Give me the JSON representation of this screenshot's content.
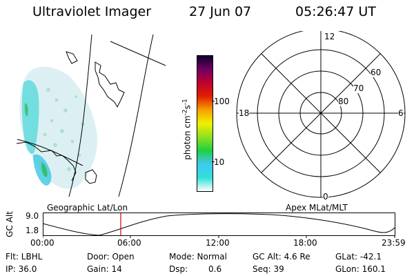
{
  "header": {
    "title": "Ultraviolet Imager",
    "date": "27 Jun 07",
    "time": "05:26:47 UT"
  },
  "colorbar": {
    "unit_label": "photon cm",
    "unit_sup1": "-2",
    "unit_mid": "s",
    "unit_sup2": "-1",
    "tick_100": "100",
    "tick_10": "10"
  },
  "polar": {
    "lat_labels": [
      "60",
      "70",
      "80"
    ],
    "mlt_top": "12",
    "mlt_left": "18",
    "mlt_right": "6",
    "mlt_bottom": "0"
  },
  "timeline": {
    "ylabel": "GC Alt",
    "y_high": "9.0",
    "y_low": "1.8",
    "title_left": "Geographic Lat/Lon",
    "title_right": "Apex MLat/MLT",
    "ticks": [
      "00:00",
      "06:00",
      "12:00",
      "18:00",
      "23:59"
    ]
  },
  "info": {
    "row1": {
      "flt": "Flt: LBHL",
      "door": "Door: Open",
      "mode": "Mode: Normal",
      "gcalt": "GC Alt: 4.6 Re",
      "glat": "GLat: -42.1"
    },
    "row2": {
      "ip": "IP: 36.0",
      "gain": "Gain: 14",
      "dsp_label": "Dsp:",
      "dsp_value": "0.6",
      "seq": "Seq: 39",
      "glon": "GLon: 160.1"
    }
  },
  "colors": {
    "colorbar_gradient": [
      "#ffffff",
      "#30e0d8",
      "#40c8f0",
      "#20d040",
      "#90e020",
      "#f0f000",
      "#f8a000",
      "#e02000",
      "#c00030",
      "#700060",
      "#100030"
    ],
    "marker": "#d00000"
  }
}
